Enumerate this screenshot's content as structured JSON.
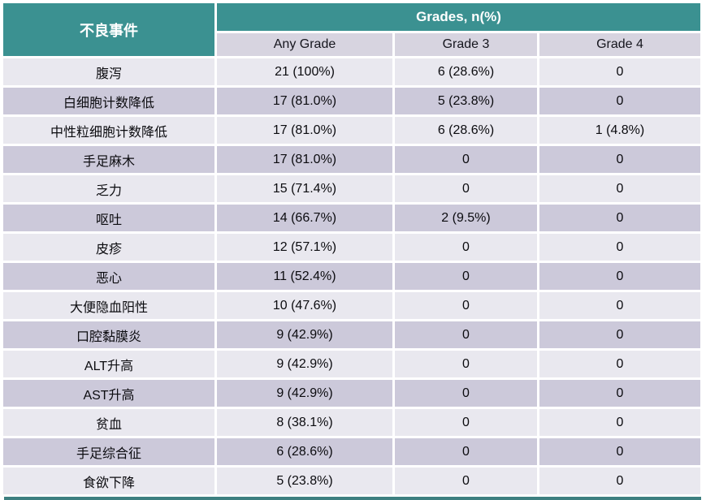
{
  "table_header": {
    "event_column": "不良事件",
    "grades_group": "Grades, n(%)",
    "sub_columns": [
      "Any Grade",
      "Grade 3",
      "Grade 4"
    ]
  },
  "chart_data": {
    "type": "table",
    "title": "Grades, n(%)",
    "columns": [
      "不良事件",
      "Any Grade",
      "Grade 3",
      "Grade 4"
    ],
    "rows": [
      [
        "腹泻",
        "21 (100%)",
        "6 (28.6%)",
        "0"
      ],
      [
        "白细胞计数降低",
        "17 (81.0%)",
        "5 (23.8%)",
        "0"
      ],
      [
        "中性粒细胞计数降低",
        "17 (81.0%)",
        "6 (28.6%)",
        "1 (4.8%)"
      ],
      [
        "手足麻木",
        "17 (81.0%)",
        "0",
        "0"
      ],
      [
        "乏力",
        "15 (71.4%)",
        "0",
        "0"
      ],
      [
        "呕吐",
        "14 (66.7%)",
        "2 (9.5%)",
        "0"
      ],
      [
        "皮疹",
        "12 (57.1%)",
        "0",
        "0"
      ],
      [
        "恶心",
        "11 (52.4%)",
        "0",
        "0"
      ],
      [
        "大便隐血阳性",
        "10 (47.6%)",
        "0",
        "0"
      ],
      [
        "口腔黏膜炎",
        "9 (42.9%)",
        "0",
        "0"
      ],
      [
        "ALT升高",
        "9 (42.9%)",
        "0",
        "0"
      ],
      [
        "AST升高",
        "9 (42.9%)",
        "0",
        "0"
      ],
      [
        "贫血",
        "8 (38.1%)",
        "0",
        "0"
      ],
      [
        "手足综合征",
        "6 (28.6%)",
        "0",
        "0"
      ],
      [
        "食欲下降",
        "5 (23.8%)",
        "0",
        "0"
      ]
    ],
    "layout_hints": {
      "alternating_rows": true,
      "first_data_row_shade": "light",
      "gridlines": "white-gaps"
    }
  },
  "colors": {
    "teal_header_bg": "#3B9191",
    "subheader_bg": "#D7D4E0",
    "row_light_bg": "#E9E8EF",
    "row_dark_bg": "#CCC9DA",
    "header_text": "#FFFFFF",
    "body_text": "#0B0B0F",
    "bottom_bar": "#3D7F80"
  }
}
